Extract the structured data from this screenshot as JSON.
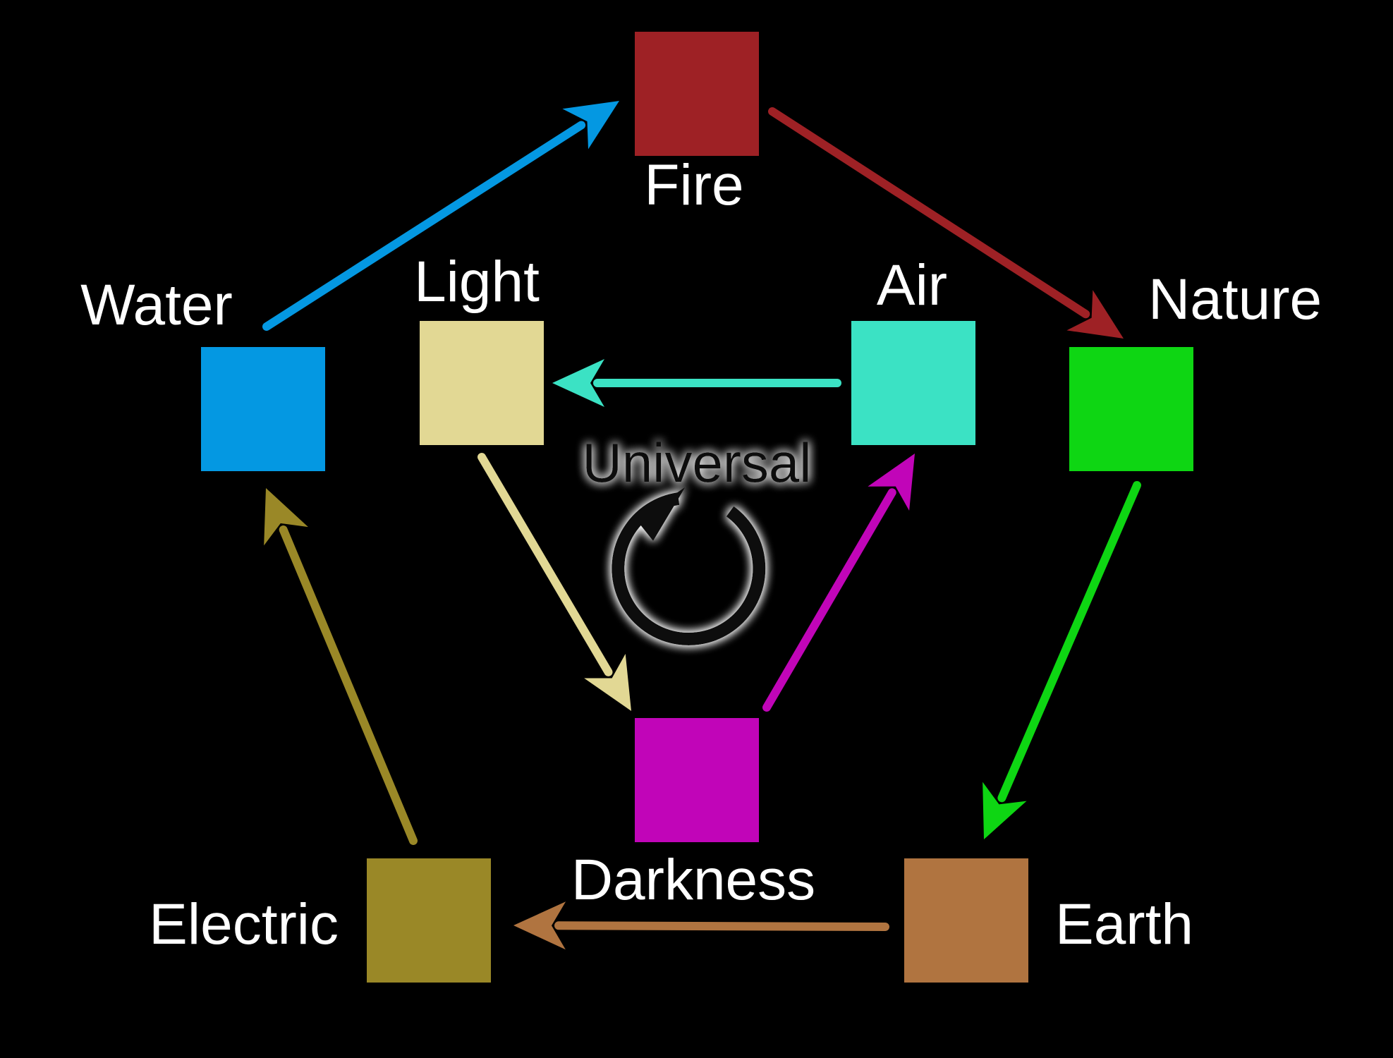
{
  "diagram": {
    "center_label": "Universal",
    "center_icon": "cycle-icon",
    "elements": [
      {
        "key": "fire",
        "label": "Fire",
        "color": "#9E2125"
      },
      {
        "key": "nature",
        "label": "Nature",
        "color": "#0ED613"
      },
      {
        "key": "earth",
        "label": "Earth",
        "color": "#B07440"
      },
      {
        "key": "electric",
        "label": "Electric",
        "color": "#9A8827"
      },
      {
        "key": "water",
        "label": "Water",
        "color": "#0498E2"
      },
      {
        "key": "light",
        "label": "Light",
        "color": "#E2D894"
      },
      {
        "key": "air",
        "label": "Air",
        "color": "#3BE2C4"
      },
      {
        "key": "darkness",
        "label": "Darkness",
        "color": "#C105B8"
      }
    ],
    "relations": [
      {
        "from": "water",
        "to": "fire"
      },
      {
        "from": "fire",
        "to": "nature"
      },
      {
        "from": "nature",
        "to": "earth"
      },
      {
        "from": "earth",
        "to": "electric"
      },
      {
        "from": "electric",
        "to": "water"
      },
      {
        "from": "air",
        "to": "light"
      },
      {
        "from": "light",
        "to": "darkness"
      },
      {
        "from": "darkness",
        "to": "air"
      }
    ]
  }
}
